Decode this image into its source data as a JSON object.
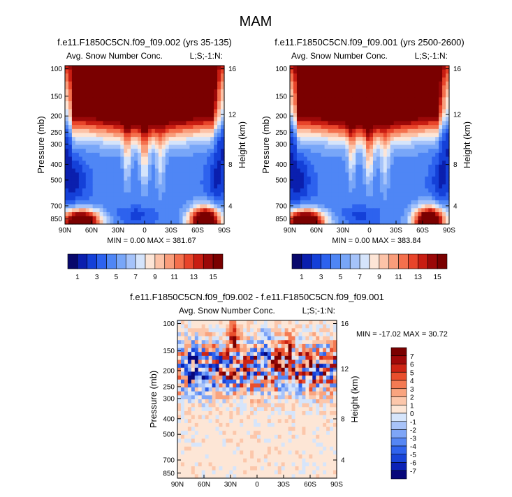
{
  "figure_title": "MAM",
  "colors": {
    "seq": [
      "#08086b",
      "#0a1fae",
      "#1440d8",
      "#2d62ee",
      "#4f86f5",
      "#78a6f8",
      "#a5c3fa",
      "#d5e4fb",
      "#fde5d6",
      "#fcc3a8",
      "#f99d7b",
      "#f4704d",
      "#e8442a",
      "#c81d12",
      "#9b0808",
      "#7a0000"
    ],
    "div": [
      "#07077a",
      "#0b22b6",
      "#1844d8",
      "#2f63ed",
      "#5586f4",
      "#7ea5f7",
      "#a8c3f9",
      "#d6e5fb",
      "#fde6d6",
      "#fcc7ab",
      "#f9a47f",
      "#f47a53",
      "#e94f2d",
      "#cd2414",
      "#a00909",
      "#7a0000"
    ]
  },
  "chart_data": [
    {
      "type": "heatmap",
      "title": "f.e11.F1850C5CN.f09_f09.002 (yrs 35-135)",
      "left_label": "Avg. Snow Number Conc.",
      "right_label": "L;S;-1:N:",
      "ylabel": "Pressure (mb)",
      "y2label": "Height (km)",
      "xticks": [
        "90N",
        "60N",
        "30N",
        "0",
        "30S",
        "60S",
        "90S"
      ],
      "yticks": [
        "100",
        "150",
        "200",
        "250",
        "300",
        "400",
        "500",
        "700",
        "850"
      ],
      "y2ticks": [
        "16",
        "12",
        "8",
        "4"
      ],
      "stats": "MIN =  0.00   MAX = 381.67",
      "min": 0.0,
      "max": 381.67,
      "colorbar_labels": [
        "1",
        "3",
        "5",
        "7",
        "9",
        "11",
        "13",
        "15"
      ],
      "colormap": "seq"
    },
    {
      "type": "heatmap",
      "title": "f.e11.F1850C5CN.f09_f09.001 (yrs 2500-2600)",
      "left_label": "Avg. Snow Number Conc.",
      "right_label": "L;S;-1:N:",
      "ylabel": "Pressure (mb)",
      "y2label": "Height (km)",
      "xticks": [
        "90N",
        "60N",
        "30N",
        "0",
        "30S",
        "60S",
        "90S"
      ],
      "yticks": [
        "100",
        "150",
        "200",
        "250",
        "300",
        "400",
        "500",
        "700",
        "850"
      ],
      "y2ticks": [
        "16",
        "12",
        "8",
        "4"
      ],
      "stats": "MIN =  0.00   MAX = 383.84",
      "min": 0.0,
      "max": 383.84,
      "colorbar_labels": [
        "1",
        "3",
        "5",
        "7",
        "9",
        "11",
        "13",
        "15"
      ],
      "colormap": "seq"
    },
    {
      "type": "heatmap",
      "title": "f.e11.F1850C5CN.f09_f09.002 - f.e11.F1850C5CN.f09_f09.001",
      "left_label": "Avg. Snow Number Conc.",
      "right_label": "L;S;-1:N:",
      "ylabel": "Pressure (mb)",
      "y2label": "Height (km)",
      "xticks": [
        "90N",
        "60N",
        "30N",
        "0",
        "30S",
        "60S",
        "90S"
      ],
      "yticks": [
        "100",
        "150",
        "200",
        "250",
        "300",
        "400",
        "500",
        "700",
        "850"
      ],
      "y2ticks": [
        "16",
        "12",
        "8",
        "4"
      ],
      "stats": "MIN = -17.02   MAX =  30.72",
      "min": -17.02,
      "max": 30.72,
      "colorbar_labels": [
        "7",
        "6",
        "5",
        "4",
        "3",
        "2",
        "1",
        "0",
        "-1",
        "-2",
        "-3",
        "-4",
        "-5",
        "-6",
        "-7"
      ],
      "colormap": "div"
    }
  ]
}
